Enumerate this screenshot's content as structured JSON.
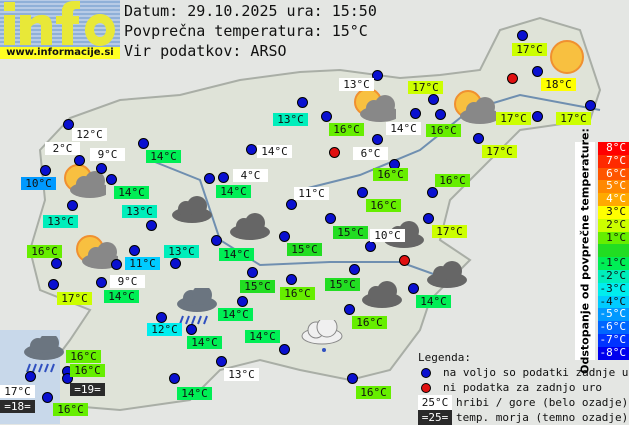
{
  "logo": {
    "word": "info",
    "url": "www.informacije.si"
  },
  "header": {
    "date_line": "Datum: 29.10.2025 ura: 15:50",
    "avg_line": "Povprečna temperatura: 15°C",
    "source_line": "Vir podatkov: ARSO"
  },
  "stations": [
    {
      "text": "12°C",
      "kind": "mountain"
    },
    {
      "text": "2°C",
      "kind": "mountain"
    },
    {
      "text": "9°C",
      "kind": "mountain"
    },
    {
      "text": "10°C",
      "kind": "deviation"
    },
    {
      "text": "14°C",
      "kind": "deviation"
    },
    {
      "text": "14°C",
      "kind": "deviation"
    },
    {
      "text": "13°C",
      "kind": "deviation"
    },
    {
      "text": "13°C",
      "kind": "deviation"
    },
    {
      "text": "16°C",
      "kind": "deviation"
    },
    {
      "text": "11°C",
      "kind": "deviation"
    },
    {
      "text": "9°C",
      "kind": "mountain"
    },
    {
      "text": "13°C",
      "kind": "deviation"
    },
    {
      "text": "17°C",
      "kind": "deviation"
    },
    {
      "text": "14°C",
      "kind": "deviation"
    },
    {
      "text": "12°C",
      "kind": "deviation"
    },
    {
      "text": "14°C",
      "kind": "deviation"
    },
    {
      "text": "16°C",
      "kind": "deviation"
    },
    {
      "text": "16°C",
      "kind": "deviation"
    },
    {
      "text": "=19=",
      "kind": "sea"
    },
    {
      "text": "17°C",
      "kind": "mountain"
    },
    {
      "text": "=18=",
      "kind": "sea"
    },
    {
      "text": "16°C",
      "kind": "deviation"
    },
    {
      "text": "14°C",
      "kind": "deviation"
    },
    {
      "text": "13°C",
      "kind": "mountain"
    },
    {
      "text": "14°C",
      "kind": "deviation"
    },
    {
      "text": "15°C",
      "kind": "deviation"
    },
    {
      "text": "15°C",
      "kind": "deviation"
    },
    {
      "text": "16°C",
      "kind": "deviation"
    },
    {
      "text": "15°C",
      "kind": "deviation"
    },
    {
      "text": "14°C",
      "kind": "deviation"
    },
    {
      "text": "16°C",
      "kind": "deviation"
    },
    {
      "text": "14°C",
      "kind": "deviation"
    },
    {
      "text": "14°C",
      "kind": "deviation"
    },
    {
      "text": "16°C",
      "kind": "deviation"
    },
    {
      "text": "13°C",
      "kind": "mountain"
    },
    {
      "text": "13°C",
      "kind": "deviation"
    },
    {
      "text": "16°C",
      "kind": "deviation"
    },
    {
      "text": "14°C",
      "kind": "mountain"
    },
    {
      "text": "6°C",
      "kind": "mountain"
    },
    {
      "text": "14°C",
      "kind": "mountain"
    },
    {
      "text": "16°C",
      "kind": "deviation"
    },
    {
      "text": "4°C",
      "kind": "mountain"
    },
    {
      "text": "14°C",
      "kind": "deviation"
    },
    {
      "text": "16°C",
      "kind": "deviation"
    },
    {
      "text": "11°C",
      "kind": "mountain"
    },
    {
      "text": "15°C",
      "kind": "deviation"
    },
    {
      "text": "10°C",
      "kind": "mountain"
    },
    {
      "text": "17°C",
      "kind": "deviation"
    },
    {
      "text": "18°C",
      "kind": "deviation"
    },
    {
      "text": "17°C",
      "kind": "deviation"
    },
    {
      "text": "16°C",
      "kind": "deviation"
    },
    {
      "text": "17°C",
      "kind": "deviation"
    },
    {
      "text": "17°C",
      "kind": "deviation"
    },
    {
      "text": "17°C",
      "kind": "deviation"
    },
    {
      "text": "16°C",
      "kind": "deviation"
    },
    {
      "text": "17°C",
      "kind": "deviation"
    }
  ],
  "weather_icons": [
    "sun-cloud",
    "sun-cloud",
    "sun-cloud",
    "sun",
    "sun-cloud",
    "cloud",
    "cloud",
    "cloud",
    "cloud",
    "cloud",
    "rain-cloud",
    "light-cloud-drizzle",
    "rain-cloud"
  ],
  "scale": {
    "title": "Odstopanje od povprečne temperature:",
    "steps": [
      {
        "label": "8°C",
        "color": "#ff0000"
      },
      {
        "label": "7°C",
        "color": "#ff2a00"
      },
      {
        "label": "6°C",
        "color": "#ff5500"
      },
      {
        "label": "5°C",
        "color": "#ff8800"
      },
      {
        "label": "4°C",
        "color": "#ffaa00"
      },
      {
        "label": "3°C",
        "color": "#ffff00"
      },
      {
        "label": "2°C",
        "color": "#ccff00"
      },
      {
        "label": "1°C",
        "color": "#66ee00"
      },
      {
        "label": "",
        "color": "#22dd22"
      },
      {
        "label": "-1°C",
        "color": "#00ee55"
      },
      {
        "label": "-2°C",
        "color": "#00eebb"
      },
      {
        "label": "-3°C",
        "color": "#00eeee"
      },
      {
        "label": "-4°C",
        "color": "#00ccff"
      },
      {
        "label": "-5°C",
        "color": "#0099ff"
      },
      {
        "label": "-6°C",
        "color": "#0066ff"
      },
      {
        "label": "-7°C",
        "color": "#0033ff"
      },
      {
        "label": "-8°C",
        "color": "#0000ee"
      }
    ]
  },
  "legend": {
    "title": "Legenda:",
    "blue_dot": "na voljo so podatki zadnje ure",
    "red_dot": "ni podatka za zadnjo uro",
    "mountain_sample": "25°C",
    "mountain_text": "hribi / gore (belo ozadje)",
    "sea_sample": "=25=",
    "sea_text": "temp. morja (temno ozadje)",
    "blue_color": "#0a10d0",
    "red_color": "#e01010"
  }
}
